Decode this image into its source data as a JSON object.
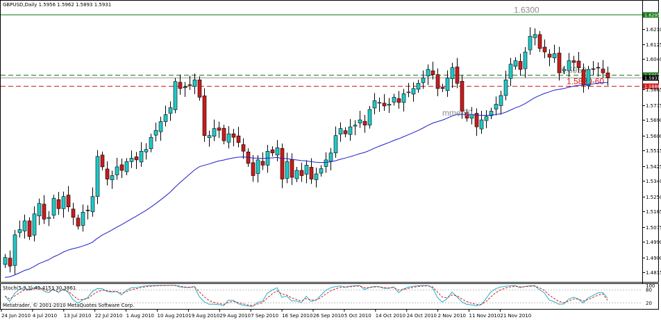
{
  "chart_header": "GBPUSD,Daily  1.5956 1.5962 1.5893 1.5931",
  "osc_header": "Stoch(5,3,3) 41.4153 30.3861",
  "copyright": "Metatrader, © 2001-2010 MetaQuotes Software Corp.",
  "colors": {
    "bull": "#20c8c8",
    "bear": "#c81c1c",
    "ma": "#1c1ccc",
    "resistance": "#1a7a1a",
    "support": "#d21a1a",
    "stoch_main": "#20b0c8",
    "stoch_signal": "#d21a1a",
    "frame": "#000000"
  },
  "chart_data": {
    "type": "candlestick",
    "symbol": "GBPUSD",
    "timeframe": "Daily",
    "ylim": [
      1.478,
      1.633
    ],
    "price_ticks": [
      "1.6295",
      "1.6210",
      "1.6125",
      "1.6040",
      "1.5950",
      "1.5931",
      "1.5886",
      "1.5865",
      "1.5775",
      "1.5690",
      "1.5600",
      "1.5515",
      "1.5425",
      "1.5340",
      "1.5250",
      "1.5165",
      "1.5075",
      "1.4990",
      "1.4900",
      "1.4815"
    ],
    "date_labels": [
      "24 Jun 2010",
      "4 Jul 2010",
      "13 Jul 2010",
      "22 Jul 2010",
      "1 Aug 2010",
      "10 Aug 2010",
      "19 Aug 2010",
      "29 Aug 2010",
      "7 Sep 2010",
      "16 Sep 2010",
      "26 Sep 2010",
      "5 Oct 2010",
      "14 Oct 2010",
      "24 Oct 2010",
      "2 Nov 2010",
      "11 Nov 2010",
      "21 Nov 2010"
    ],
    "hlines": [
      {
        "price": 1.6295,
        "style": "solid",
        "color": "#1a7a1a",
        "label": "1.6300",
        "tag": "1.6295"
      },
      {
        "price": 1.595,
        "style": "dashed",
        "color": "#1a7a1a",
        "label": "1.5950",
        "tag": "1.5950"
      },
      {
        "price": 1.5931,
        "style": "solid",
        "color": "#999999",
        "label": "",
        "tag": "1.5931"
      },
      {
        "price": 1.5886,
        "style": "dashed",
        "color": "#d21a1a",
        "label": "1.5880-60",
        "tag": "1.5886"
      }
    ],
    "ma_label": "mme 50",
    "closes": [
      1.49,
      1.485,
      1.503,
      1.506,
      1.511,
      1.502,
      1.515,
      1.521,
      1.512,
      1.513,
      1.524,
      1.518,
      1.525,
      1.519,
      1.513,
      1.508,
      1.516,
      1.517,
      1.525,
      1.548,
      1.542,
      1.535,
      1.537,
      1.542,
      1.54,
      1.545,
      1.547,
      1.546,
      1.551,
      1.552,
      1.559,
      1.563,
      1.568,
      1.572,
      1.576,
      1.591,
      1.587,
      1.588,
      1.589,
      1.592,
      1.582,
      1.56,
      1.56,
      1.564,
      1.563,
      1.557,
      1.561,
      1.559,
      1.556,
      1.551,
      1.544,
      1.537,
      1.546,
      1.543,
      1.551,
      1.55,
      1.553,
      1.535,
      1.545,
      1.536,
      1.54,
      1.537,
      1.543,
      1.535,
      1.538,
      1.541,
      1.546,
      1.55,
      1.56,
      1.564,
      1.561,
      1.565,
      1.566,
      1.569,
      1.566,
      1.575,
      1.58,
      1.579,
      1.577,
      1.578,
      1.582,
      1.579,
      1.584,
      1.585,
      1.587,
      1.59,
      1.593,
      1.598,
      1.595,
      1.587,
      1.587,
      1.593,
      1.599,
      1.59,
      1.574,
      1.57,
      1.572,
      1.565,
      1.569,
      1.571,
      1.574,
      1.578,
      1.583,
      1.592,
      1.601,
      1.603,
      1.598,
      1.608,
      1.617,
      1.618,
      1.61,
      1.608,
      1.605,
      1.607,
      1.596,
      1.598,
      1.603,
      1.602,
      1.599,
      1.589,
      1.598,
      1.598,
      1.599,
      1.596,
      1.5931
    ],
    "stoch_range": [
      0,
      100
    ],
    "stoch_levels": [
      20,
      80
    ],
    "stoch_main_last": 41.4153,
    "stoch_signal_last": 30.3861
  }
}
